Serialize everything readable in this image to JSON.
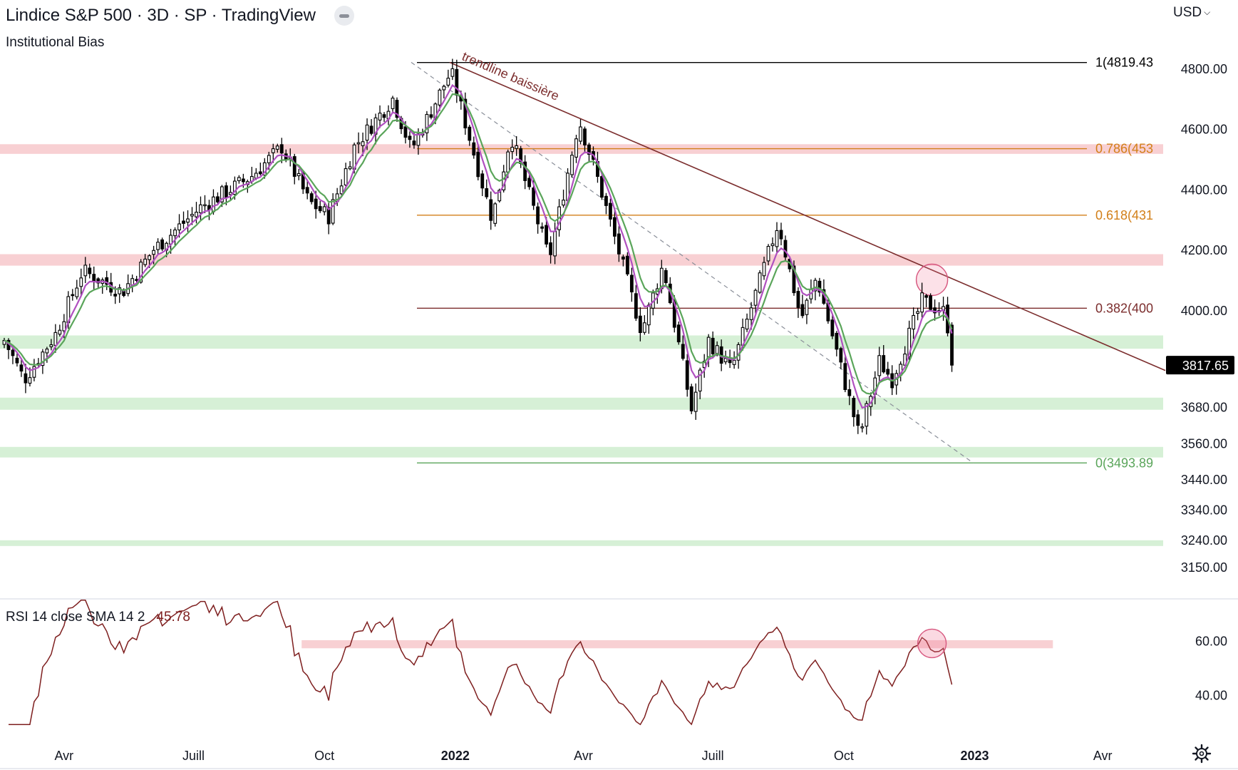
{
  "header": {
    "title": "Lindice S&P 500 · 3D · SP  · TradingView",
    "indicator": "Institutional Bias",
    "currency": "USD",
    "currency_icon": "chevron-down-icon",
    "collapse_icon": "collapse-icon",
    "settings_icon": "gear-icon"
  },
  "colors": {
    "bull_candle": "#ffffff",
    "bear_candle": "#000000",
    "ema_fast": "#b050c0",
    "ema_slow": "#5aa55a",
    "trendline": "#7b2d2d",
    "support_zone": "#d6f0d6",
    "resistance_zone": "#f8d0d3",
    "fib_orange": "#d27f18",
    "fib_brown": "#7b2d2d",
    "rsi_line": "#7e1f1f",
    "price_tag_bg": "#000000"
  },
  "chart_data": {
    "type": "candlestick",
    "title": "Lindice S&P 500 · 3D · SP",
    "x_tick_labels": [
      "Avr",
      "Juill",
      "Oct",
      "2022",
      "Avr",
      "Juill",
      "Oct",
      "2023",
      "Avr"
    ],
    "x_tick_dates": [
      "2021-04-01",
      "2021-07-01",
      "2021-10-01",
      "2022-01-01",
      "2022-04-01",
      "2022-07-01",
      "2022-10-01",
      "2023-01-01",
      "2023-04-01"
    ],
    "x_range": [
      "2021-02-15",
      "2023-05-15"
    ],
    "y_tick_labels": [
      "4800.00",
      "4600.00",
      "4400.00",
      "4200.00",
      "4000.00",
      "3680.00",
      "3560.00",
      "3440.00",
      "3340.00",
      "3240.00",
      "3150.00"
    ],
    "y_range": [
      3110,
      4880
    ],
    "last_price": "3817.65",
    "close_anchors": [
      [
        "2021-02-18",
        3900
      ],
      [
        "2021-03-04",
        3770
      ],
      [
        "2021-03-26",
        3920
      ],
      [
        "2021-04-14",
        4130
      ],
      [
        "2021-05-12",
        4060
      ],
      [
        "2021-06-03",
        4200
      ],
      [
        "2021-07-06",
        4340
      ],
      [
        "2021-08-10",
        4440
      ],
      [
        "2021-09-01",
        4540
      ],
      [
        "2021-09-20",
        4360
      ],
      [
        "2021-10-04",
        4310
      ],
      [
        "2021-10-22",
        4540
      ],
      [
        "2021-11-18",
        4700
      ],
      [
        "2021-12-01",
        4530
      ],
      [
        "2021-12-29",
        4790
      ],
      [
        "2022-01-27",
        4300
      ],
      [
        "2022-02-09",
        4580
      ],
      [
        "2022-03-08",
        4170
      ],
      [
        "2022-03-29",
        4630
      ],
      [
        "2022-04-12",
        4420
      ],
      [
        "2022-05-12",
        3930
      ],
      [
        "2022-05-27",
        4150
      ],
      [
        "2022-06-16",
        3670
      ],
      [
        "2022-06-28",
        3900
      ],
      [
        "2022-07-14",
        3800
      ],
      [
        "2022-08-16",
        4290
      ],
      [
        "2022-09-01",
        3970
      ],
      [
        "2022-09-12",
        4110
      ],
      [
        "2022-10-12",
        3580
      ],
      [
        "2022-10-26",
        3830
      ],
      [
        "2022-11-04",
        3770
      ],
      [
        "2022-11-25",
        4030
      ],
      [
        "2022-12-12",
        3990
      ],
      [
        "2022-12-16",
        3817.65
      ]
    ],
    "ema_fast_period": 5,
    "ema_slow_period": 8,
    "fibonacci": {
      "from_date": "2021-12-01",
      "to_date": "2022-12-31",
      "levels": [
        {
          "label": "1(4819.43",
          "value": 4819.43,
          "color": "#000000"
        },
        {
          "label": "0.786(453",
          "value": 4534,
          "color": "#d27f18"
        },
        {
          "label": "0.618(431",
          "value": 4314,
          "color": "#d27f18"
        },
        {
          "label": "0.382(400",
          "value": 4006,
          "color": "#7b2d2d"
        },
        {
          "label": "0(3493.89",
          "value": 3493.89,
          "color": "#5aa55a"
        }
      ]
    },
    "zones": [
      {
        "kind": "resistance",
        "low": 4517,
        "high": 4549
      },
      {
        "kind": "resistance",
        "low": 4147,
        "high": 4185
      },
      {
        "kind": "support",
        "low": 3872,
        "high": 3916
      },
      {
        "kind": "support",
        "low": 3670,
        "high": 3710
      },
      {
        "kind": "support",
        "low": 3512,
        "high": 3547
      },
      {
        "kind": "support",
        "low": 3219,
        "high": 3238
      }
    ],
    "trendline": {
      "label": "trendline baissière",
      "from": [
        "2021-12-28",
        4820
      ],
      "to": [
        "2023-05-15",
        3800
      ]
    },
    "dashed_trendline": {
      "from": [
        "2021-12-01",
        4820
      ],
      "to": [
        "2022-12-31",
        3493.89
      ]
    },
    "highlight_circles": [
      {
        "date": "2022-12-02",
        "value": 4100
      }
    ],
    "rsi": {
      "legend": "RSI 14 close SMA 14 2",
      "value": "45.78",
      "y_tick_labels": [
        "60.00",
        "40.00"
      ],
      "y_range": [
        28,
        76
      ],
      "resistance_zone": {
        "low": 57.2,
        "high": 60.2,
        "from_date": "2021-09-15",
        "to_date": "2023-02-25"
      },
      "highlight_circle": {
        "date": "2022-12-02",
        "value": 59
      }
    }
  }
}
